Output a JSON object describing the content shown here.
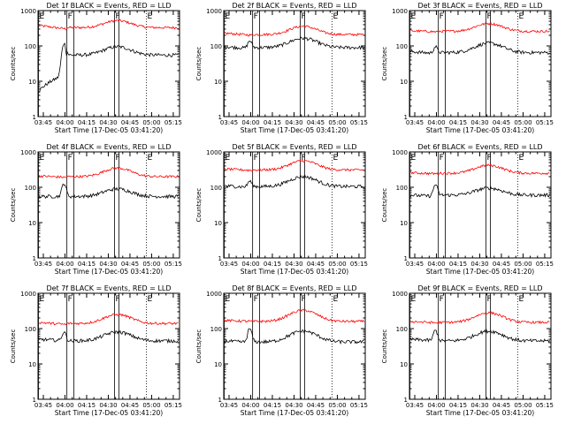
{
  "chart_data": {
    "type": "line",
    "yscale": "log",
    "ylim": [
      1,
      1000
    ],
    "y_ticks": [
      1,
      10,
      100,
      1000
    ],
    "y_tick_labels": [
      "1",
      "10",
      "100",
      "1000"
    ],
    "ylabel": "Counts/sec",
    "xlabel": "Start Time (17-Dec-05 03:41:20)",
    "x_range_minutes": [
      0,
      98
    ],
    "x_ticks_minutes": [
      3.67,
      18.67,
      33.67,
      48.67,
      63.67,
      78.67,
      93.67
    ],
    "x_tick_labels": [
      "03:45",
      "04:00",
      "04:15",
      "04:30",
      "04:45",
      "05:00",
      "05:15"
    ],
    "legend": {
      "black": "Events",
      "red": "LLD"
    },
    "colors": {
      "events": "#000000",
      "lld": "#ff0000"
    },
    "interval_markers": [
      {
        "label": "E",
        "minutes": 0.3,
        "style": "solid"
      },
      {
        "label": "F",
        "minutes": 20.0,
        "style": "solid"
      },
      {
        "label": "F",
        "minutes": 53.0,
        "style": "solid"
      },
      {
        "label": "E",
        "minutes": 75.0,
        "style": "dotted"
      }
    ],
    "extra_solid_lines_minutes": [
      24.8,
      56.0
    ],
    "panels": [
      {
        "title": "Det 1f BLACK = Events, RED = LLD",
        "events": {
          "base": 55,
          "bump": 95,
          "pre": [
            5,
            16
          ],
          "peak": 9,
          "flare": 120
        },
        "lld": {
          "base": 330,
          "bump": 520,
          "pre": [
            380,
            300
          ]
        }
      },
      {
        "title": "Det 2f BLACK = Events, RED = LLD",
        "events": {
          "base": 90,
          "bump": 165,
          "pre": [
            95,
            85
          ],
          "peak": 9,
          "flare": 140
        },
        "lld": {
          "base": 210,
          "bump": 360,
          "pre": [
            230,
            200
          ]
        }
      },
      {
        "title": "Det 3f BLACK = Events, RED = LLD",
        "events": {
          "base": 65,
          "bump": 120,
          "pre": [
            70,
            60
          ],
          "peak": 9,
          "flare": 95
        },
        "lld": {
          "base": 260,
          "bump": 430,
          "pre": [
            270,
            250
          ]
        }
      },
      {
        "title": "Det 4f BLACK = Events, RED = LLD",
        "events": {
          "base": 55,
          "bump": 90,
          "pre": [
            55,
            55
          ],
          "peak": 9,
          "flare": 130
        },
        "lld": {
          "base": 200,
          "bump": 350,
          "pre": [
            210,
            190
          ]
        }
      },
      {
        "title": "Det 5f BLACK = Events, RED = LLD",
        "events": {
          "base": 105,
          "bump": 200,
          "pre": [
            110,
            100
          ],
          "peak": 9,
          "flare": 150
        },
        "lld": {
          "base": 310,
          "bump": 560,
          "pre": [
            330,
            300
          ]
        }
      },
      {
        "title": "Det 6f BLACK = Events, RED = LLD",
        "events": {
          "base": 60,
          "bump": 95,
          "pre": [
            60,
            55
          ],
          "peak": 9,
          "flare": 120
        },
        "lld": {
          "base": 250,
          "bump": 420,
          "pre": [
            260,
            240
          ]
        }
      },
      {
        "title": "Det 7f BLACK = Events, RED = LLD",
        "events": {
          "base": 45,
          "bump": 80,
          "pre": [
            50,
            45
          ],
          "peak": 9,
          "flare": 80
        },
        "lld": {
          "base": 140,
          "bump": 250,
          "pre": [
            150,
            130
          ]
        }
      },
      {
        "title": "Det 8f BLACK = Events, RED = LLD",
        "events": {
          "base": 42,
          "bump": 85,
          "pre": [
            45,
            40
          ],
          "peak": 9,
          "flare": 100
        },
        "lld": {
          "base": 160,
          "bump": 330,
          "pre": [
            170,
            160
          ]
        }
      },
      {
        "title": "Det 9f BLACK = Events, RED = LLD",
        "events": {
          "base": 45,
          "bump": 85,
          "pre": [
            50,
            45
          ],
          "peak": 9,
          "flare": 90
        },
        "lld": {
          "base": 150,
          "bump": 280,
          "pre": [
            160,
            145
          ]
        }
      }
    ]
  }
}
